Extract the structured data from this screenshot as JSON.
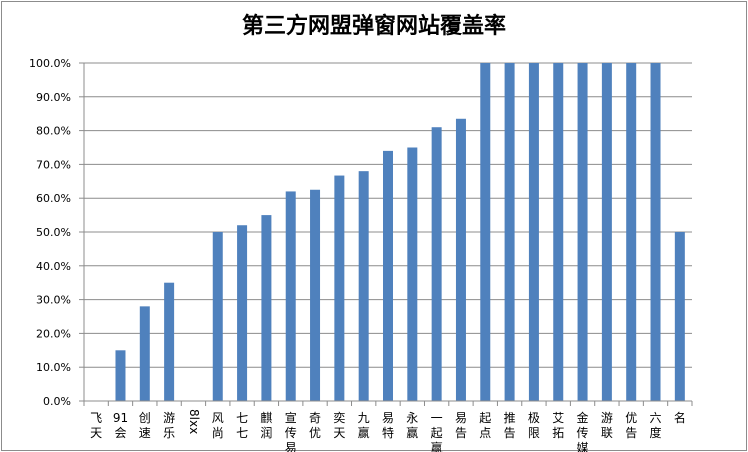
{
  "chart_data": {
    "type": "bar",
    "title": "第三方网盟弹窗网站覆盖率",
    "xlabel": "",
    "ylabel": "",
    "ylim": [
      0,
      100
    ],
    "y_ticks": [
      "0.0%",
      "10.0%",
      "20.0%",
      "30.0%",
      "40.0%",
      "50.0%",
      "60.0%",
      "70.0%",
      "80.0%",
      "90.0%",
      "100.0%"
    ],
    "grid": true,
    "legend": "none",
    "bar_color": "#4f81bd",
    "categories": [
      "飞天",
      "91会",
      "创速",
      "游乐",
      "8lxx",
      "风尚",
      "七七",
      "麒润",
      "宣传易",
      "奇优",
      "奕天",
      "九赢",
      "易特",
      "永赢",
      "一起赢",
      "易告",
      "起点",
      "推告",
      "极限",
      "艾拓",
      "金传媒",
      "游联",
      "优告",
      "六度",
      "名"
    ],
    "values": [
      0,
      15,
      28,
      35,
      0,
      50,
      52,
      55,
      62,
      62.5,
      66.7,
      68,
      74,
      75,
      81,
      83.5,
      100,
      100,
      100,
      100,
      100,
      100,
      100,
      100,
      50
    ]
  }
}
